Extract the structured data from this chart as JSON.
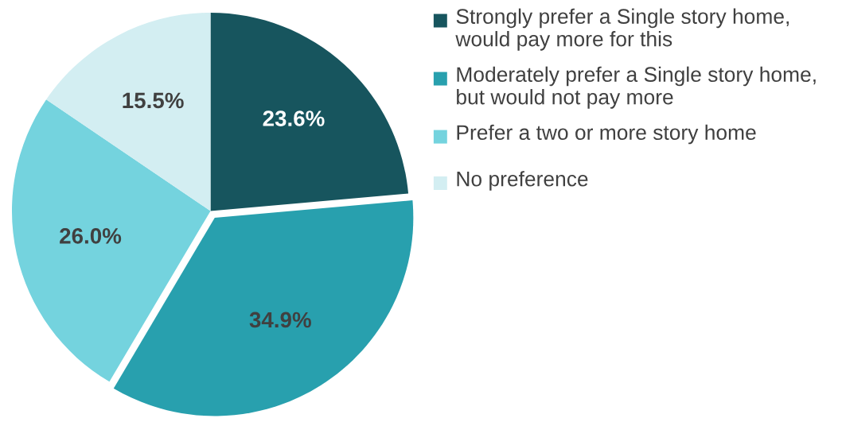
{
  "chart_data": {
    "type": "pie",
    "categories": [
      "Strongly prefer a Single story home, would pay more for this",
      "Moderately prefer a Single story home, but would not pay more",
      "Prefer a two or more story home",
      "No preference"
    ],
    "values": [
      23.6,
      34.9,
      26.0,
      15.5
    ],
    "colors": [
      "#17555e",
      "#28a0ae",
      "#74d3de",
      "#d3eef2"
    ],
    "value_labels": [
      "23.6%",
      "34.9%",
      "26.0%",
      "15.5%"
    ],
    "legend": "right"
  }
}
